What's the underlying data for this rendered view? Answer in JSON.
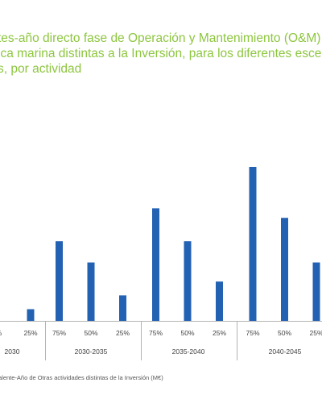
{
  "title_lines": [
    "tes-año directo fase de Operación y Mantenimiento (O&M)",
    "ica marina distintas a la Inversión, para los diferentes esce",
    "s, por actividad"
  ],
  "chart_data": {
    "type": "bar",
    "title": "tes-año directo fase de Operación y Mantenimiento (O&M) ica marina distintas a la Inversión, para los diferentes esce s, por actividad",
    "groups": [
      {
        "label": "2030",
        "categories": [
          "%",
          "25%"
        ],
        "values": [
          null,
          11
        ]
      },
      {
        "label": "2030-2035",
        "categories": [
          "75%",
          "50%",
          "25%"
        ],
        "values": [
          75,
          55,
          24
        ]
      },
      {
        "label": "2035-2040",
        "categories": [
          "75%",
          "50%",
          "25%"
        ],
        "values": [
          106,
          75,
          37
        ]
      },
      {
        "label": "2040-2045",
        "categories": [
          "75%",
          "50%",
          "25%"
        ],
        "values": [
          145,
          97,
          55
        ]
      }
    ],
    "ylim": [
      0,
      150
    ],
    "grid": false,
    "legend": "bottom-left",
    "legend_label": "alente-Año de Otras actividades distintas de la Inversión (M€)",
    "colors": {
      "bar": "#2361b3",
      "title": "#8dc63f",
      "axis": "#b3b3b3"
    }
  }
}
